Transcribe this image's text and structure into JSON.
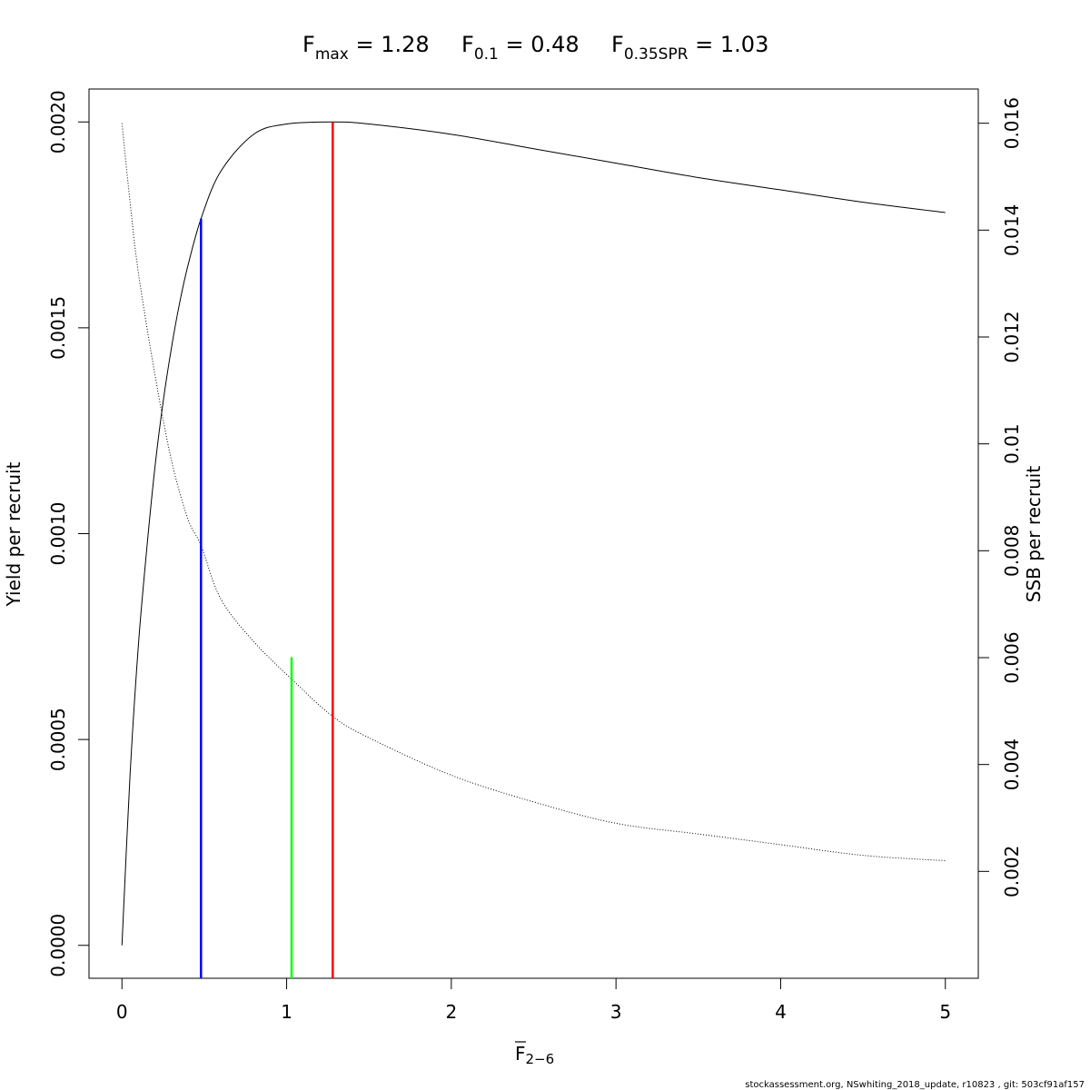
{
  "title": {
    "parts": [
      {
        "base": "F",
        "sub": "max",
        "rest": " = 1.28"
      },
      {
        "base": "F",
        "sub": "0.1",
        "rest": " = 0.48"
      },
      {
        "base": "F",
        "sub": "0.35SPR",
        "rest": " = 1.03"
      }
    ]
  },
  "footer": "stockassessment.org, NSwhiting_2018_update, r10823 , git: 503cf91af157",
  "chart_data": {
    "type": "line",
    "xlabel": {
      "base": "F",
      "overline": true,
      "sub": "2−6"
    },
    "ylabel_left": "Yield per recruit",
    "ylabel_right": "SSB per recruit",
    "xlim": [
      -0.2,
      5.2
    ],
    "ylim_left": [
      -8e-05,
      0.00208
    ],
    "ylim_right": [
      0,
      0.01664
    ],
    "x_ticks": [
      0,
      1,
      2,
      3,
      4,
      5
    ],
    "x_tick_labels": [
      "0",
      "1",
      "2",
      "3",
      "4",
      "5"
    ],
    "y_left_ticks": [
      0,
      0.0005,
      0.001,
      0.0015,
      0.002
    ],
    "y_left_tick_labels": [
      "0.0000",
      "0.0005",
      "0.0010",
      "0.0015",
      "0.0020"
    ],
    "y_right_ticks": [
      0.002,
      0.004,
      0.006,
      0.008,
      0.01,
      0.012,
      0.014,
      0.016
    ],
    "y_right_tick_labels": [
      "0.002",
      "0.004",
      "0.006",
      "0.008",
      "0.01",
      "0.012",
      "0.014",
      "0.016"
    ],
    "series": [
      {
        "axis": "left",
        "style": "solid",
        "color": "#000000",
        "x": [
          0,
          0.05,
          0.1,
          0.15,
          0.2,
          0.25,
          0.3,
          0.35,
          0.4,
          0.48,
          0.6,
          0.8,
          1.0,
          1.28,
          1.5,
          2.0,
          2.5,
          3.0,
          3.5,
          4.0,
          4.5,
          5.0
        ],
        "y": [
          0,
          0.00042,
          0.00073,
          0.00096,
          0.00116,
          0.00132,
          0.00145,
          0.00156,
          0.00165,
          0.001765,
          0.00188,
          0.00197,
          0.001995,
          0.002,
          0.001995,
          0.00197,
          0.001935,
          0.0019,
          0.001865,
          0.001835,
          0.001805,
          0.00178
        ]
      },
      {
        "axis": "right",
        "style": "dotted",
        "color": "#000000",
        "x": [
          0,
          0.05,
          0.1,
          0.2,
          0.3,
          0.4,
          0.48,
          0.6,
          0.8,
          1.03,
          1.28,
          1.5,
          2.0,
          2.5,
          3.0,
          3.5,
          4.0,
          4.5,
          5.0
        ],
        "y": [
          0.016,
          0.0145,
          0.0132,
          0.0113,
          0.0097,
          0.0086,
          0.0081,
          0.0071,
          0.0063,
          0.0056,
          0.0049,
          0.0045,
          0.0038,
          0.0033,
          0.0029,
          0.0027,
          0.0025,
          0.0023,
          0.0022
        ]
      }
    ],
    "reference_lines": [
      {
        "name": "F0.1",
        "x": 0.48,
        "y_top_left": 0.001765,
        "color": "#0000ff"
      },
      {
        "name": "F0.35SPR",
        "x": 1.03,
        "y_top_left": 0.0007,
        "color": "#00ff00"
      },
      {
        "name": "Fmax",
        "x": 1.28,
        "y_top_left": 0.002,
        "color": "#ff0000"
      }
    ],
    "grid": false,
    "legend": "none"
  }
}
